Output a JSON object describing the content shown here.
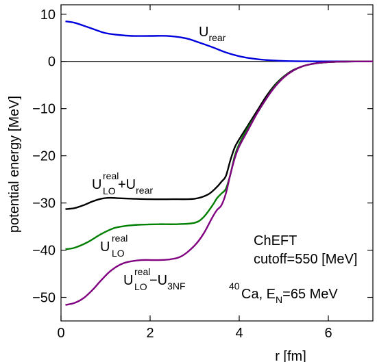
{
  "chart_data": {
    "type": "line",
    "xlabel": "r  [fm]",
    "ylabel": "potential energy  [MeV]",
    "xlim": [
      0,
      7
    ],
    "ylim": [
      -55,
      12
    ],
    "xticks": [
      0,
      2,
      4,
      6
    ],
    "xtick_labels": [
      "0",
      "2",
      "4",
      "6"
    ],
    "yticks": [
      10,
      0,
      -10,
      -20,
      -30,
      -40,
      -50
    ],
    "ytick_labels": [
      "10",
      "0",
      "−10",
      "−20",
      "−30",
      "−40",
      "−50"
    ],
    "zero_line": true,
    "grid": false,
    "series": [
      {
        "key": "rear",
        "color": "#0000dd",
        "x": [
          0.1,
          0.3,
          0.5,
          0.8,
          1.0,
          1.3,
          1.6,
          2.0,
          2.4,
          2.8,
          3.1,
          3.4,
          3.7,
          4.0,
          4.3,
          4.6,
          5.0,
          5.5,
          6.0,
          6.5,
          7.0
        ],
        "y": [
          8.5,
          8.2,
          7.6,
          6.6,
          6.0,
          5.6,
          5.4,
          5.4,
          5.4,
          4.9,
          4.0,
          3.0,
          1.9,
          1.1,
          0.6,
          0.3,
          0.1,
          0.02,
          0.0,
          0.0,
          0.0
        ]
      },
      {
        "key": "lo_plus_rear",
        "color": "#000000",
        "x": [
          0.1,
          0.3,
          0.5,
          0.7,
          0.9,
          1.1,
          1.3,
          1.6,
          2.0,
          2.5,
          3.0,
          3.3,
          3.5,
          3.6,
          3.7,
          3.8,
          3.9,
          4.0,
          4.2,
          4.4,
          4.6,
          4.8,
          5.0,
          5.2,
          5.4,
          5.6,
          5.8,
          6.0,
          6.3,
          6.6,
          7.0
        ],
        "y": [
          -31.3,
          -31.1,
          -30.5,
          -29.7,
          -29.1,
          -28.9,
          -29.0,
          -29.1,
          -29.2,
          -29.2,
          -29.1,
          -28.2,
          -26.6,
          -25.5,
          -24.3,
          -21.0,
          -18.2,
          -16.5,
          -13.5,
          -10.5,
          -7.5,
          -5.0,
          -3.2,
          -1.9,
          -1.1,
          -0.6,
          -0.3,
          -0.15,
          -0.05,
          -0.01,
          0.0
        ]
      },
      {
        "key": "lo",
        "color": "#008000",
        "x": [
          0.1,
          0.3,
          0.6,
          0.9,
          1.2,
          1.5,
          1.8,
          2.2,
          2.6,
          3.0,
          3.2,
          3.4,
          3.5,
          3.6,
          3.7,
          3.8,
          3.9,
          4.0,
          4.2,
          4.4,
          4.6,
          4.8,
          5.0,
          5.2,
          5.4,
          5.6,
          5.8,
          6.0,
          6.3,
          6.6,
          7.0
        ],
        "y": [
          -39.8,
          -39.5,
          -38.3,
          -36.6,
          -35.3,
          -34.8,
          -34.6,
          -34.5,
          -34.5,
          -34.2,
          -33.0,
          -30.5,
          -29.0,
          -28.0,
          -27.0,
          -24.0,
          -20.0,
          -17.5,
          -14.0,
          -11.0,
          -8.0,
          -5.2,
          -3.3,
          -2.0,
          -1.1,
          -0.6,
          -0.3,
          -0.15,
          -0.05,
          -0.01,
          0.0
        ]
      },
      {
        "key": "lo_minus_3nf",
        "color": "#800080",
        "x": [
          0.1,
          0.3,
          0.5,
          0.7,
          0.9,
          1.1,
          1.3,
          1.5,
          1.8,
          2.1,
          2.4,
          2.7,
          3.0,
          3.2,
          3.4,
          3.5,
          3.6,
          3.7,
          3.8,
          3.9,
          4.0,
          4.2,
          4.4,
          4.6,
          4.8,
          5.0,
          5.2,
          5.4,
          5.6,
          5.8,
          6.0,
          6.3,
          6.6,
          7.0
        ],
        "y": [
          -51.6,
          -51.2,
          -50.2,
          -48.5,
          -46.4,
          -44.5,
          -43.2,
          -42.5,
          -42.1,
          -42.1,
          -42.0,
          -41.3,
          -39.0,
          -36.5,
          -33.0,
          -31.5,
          -30.5,
          -28.0,
          -24.0,
          -20.5,
          -18.0,
          -14.5,
          -11.0,
          -8.0,
          -5.4,
          -3.4,
          -2.0,
          -1.1,
          -0.6,
          -0.3,
          -0.15,
          -0.05,
          -0.01,
          0.0
        ]
      }
    ],
    "annotations": {
      "rear": {
        "main": "U",
        "sub": "rear"
      },
      "lo_plus_rear": {
        "main1": "U",
        "sup1": "real",
        "sub1": "LO",
        "op": "+U",
        "sub2": "rear"
      },
      "lo": {
        "main": "U",
        "sup": "real",
        "sub": "LO"
      },
      "lo_minus_3nf": {
        "main1": "U",
        "sup1": "real",
        "sub1": "LO",
        "op": "−U",
        "sub2": "3NF"
      },
      "model_line1": "ChEFT",
      "model_line2": "cutoff=550 [MeV]",
      "nucleus": {
        "mass": "40",
        "element": "Ca, E",
        "sub": "N",
        "tail": "=65 MeV"
      }
    }
  }
}
